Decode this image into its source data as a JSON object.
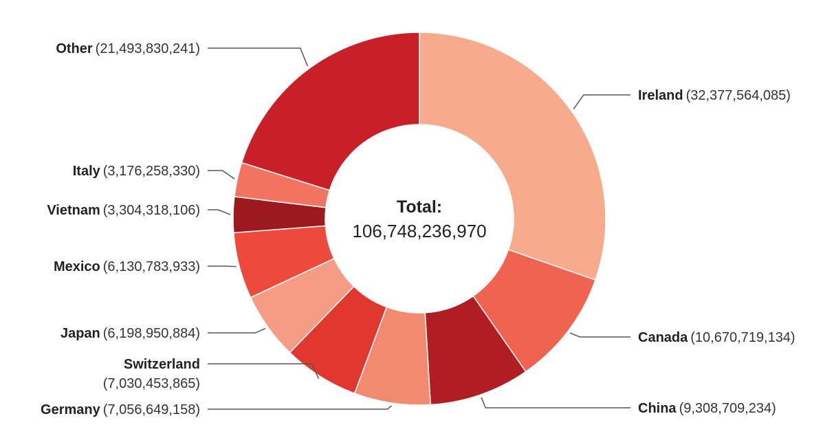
{
  "chart_data": {
    "type": "pie",
    "subtype": "donut",
    "center_label": {
      "title": "Total:",
      "value": "106,748,236,970"
    },
    "slices": [
      {
        "name": "Ireland",
        "value_label": "(32,377,564,085)",
        "value": 32377564085,
        "color": "#f7ab8c"
      },
      {
        "name": "Canada",
        "value_label": "(10,670,719,134)",
        "value": 10670719134,
        "color": "#ef6350"
      },
      {
        "name": "China",
        "value_label": "(9,308,709,234)",
        "value": 9308709234,
        "color": "#b01e23"
      },
      {
        "name": "Germany",
        "value_label": "(7,056,649,158)",
        "value": 7056649158,
        "color": "#f28a70"
      },
      {
        "name": "Switzerland",
        "value_label": "(7,030,453,865)",
        "value": 7030453865,
        "color": "#e0372e"
      },
      {
        "name": "Japan",
        "value_label": "(6,198,950,884)",
        "value": 6198950884,
        "color": "#f69b84"
      },
      {
        "name": "Mexico",
        "value_label": "(6,130,783,933)",
        "value": 6130783933,
        "color": "#ee4a3c"
      },
      {
        "name": "Vietnam",
        "value_label": "(3,304,318,106)",
        "value": 3304318106,
        "color": "#9c1a1e"
      },
      {
        "name": "Italy",
        "value_label": "(3,176,258,330)",
        "value": 3176258330,
        "color": "#f27461"
      },
      {
        "name": "Other",
        "value_label": "(21,493,830,241)",
        "value": 21493830241,
        "color": "#c81f28"
      }
    ]
  }
}
